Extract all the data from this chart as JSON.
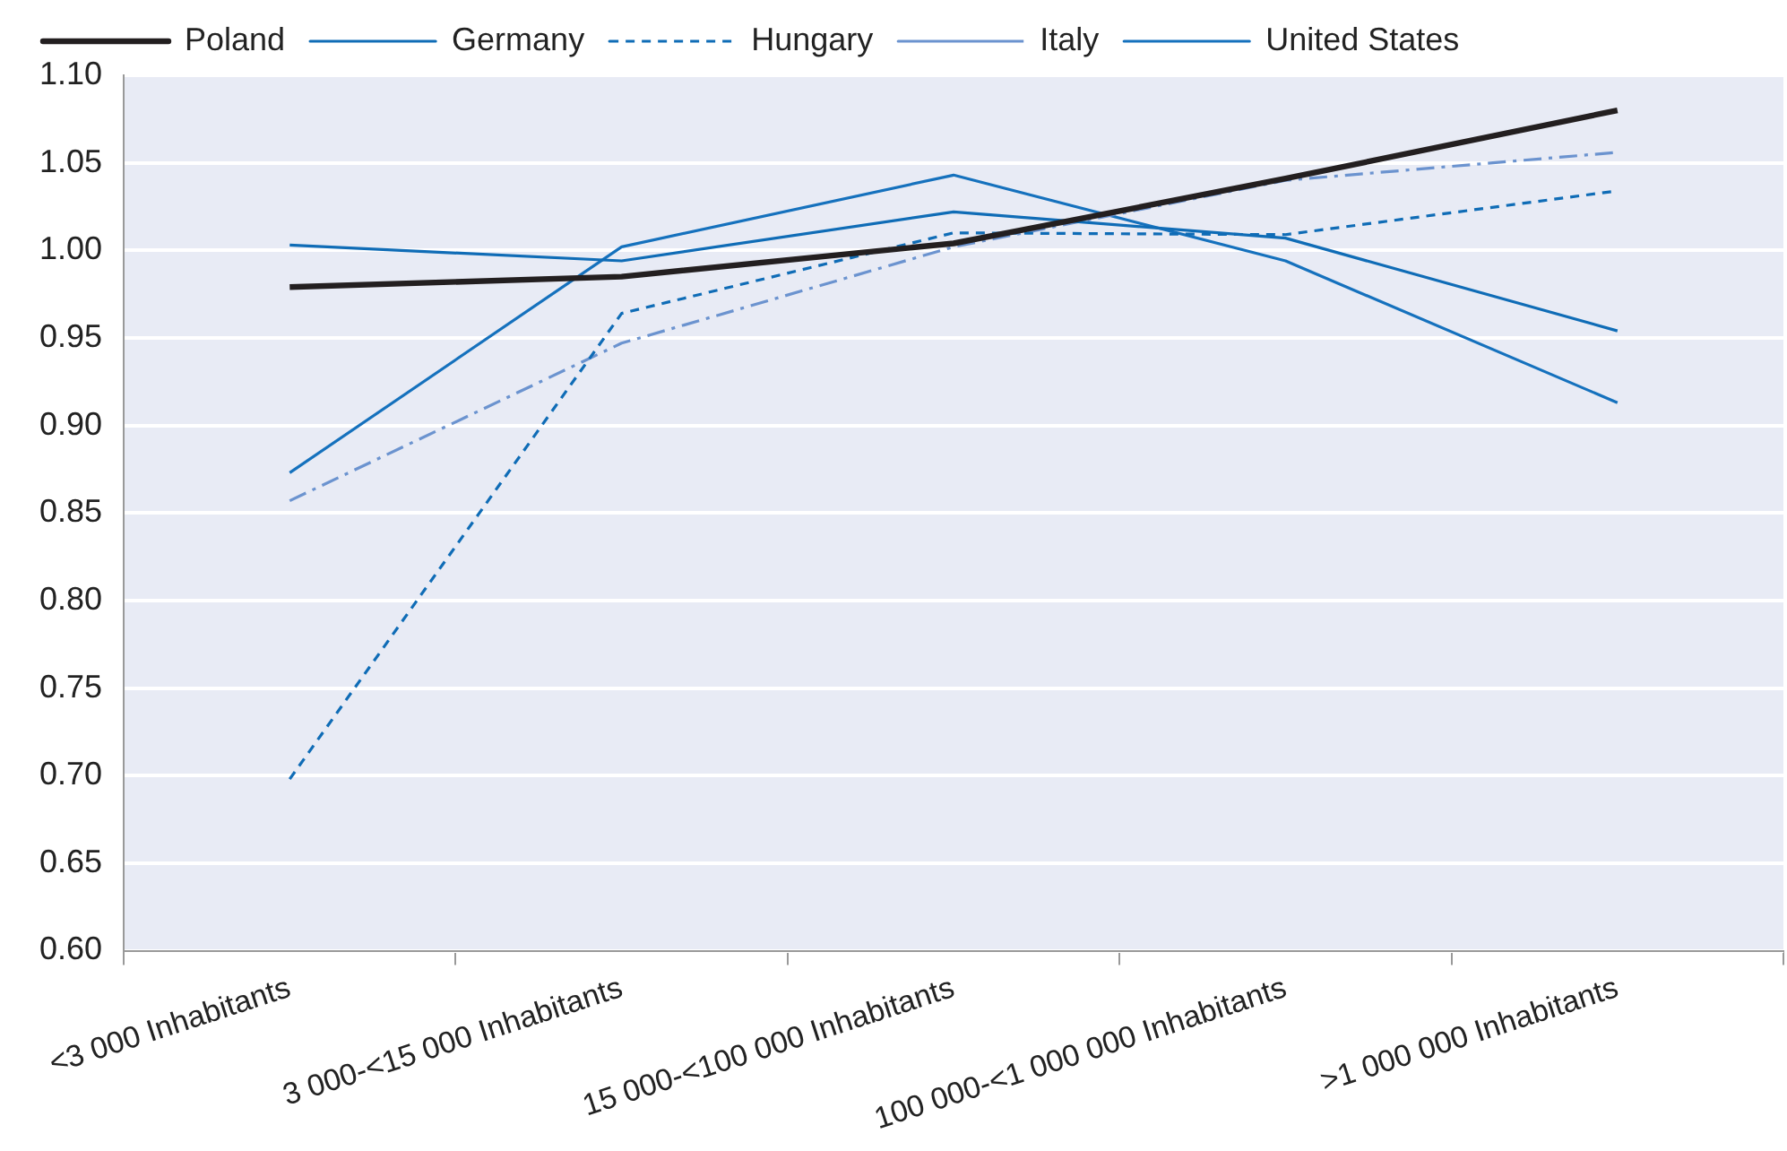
{
  "chart_data": {
    "type": "line",
    "categories": [
      "<3 000 Inhabitants",
      "3 000-<15 000 Inhabitants",
      "15 000-<100 000 Inhabitants",
      "100 000-<1 000 000 Inhabitants",
      ">1 000 000 Inhabitants"
    ],
    "series": [
      {
        "name": "Poland",
        "color": "#231f20",
        "line_style": "solid",
        "values": [
          0.979,
          0.985,
          1.004,
          1.041,
          1.08
        ]
      },
      {
        "name": "Germany",
        "color": "#0f6cb6",
        "line_style": "solid",
        "values": [
          1.003,
          0.994,
          1.022,
          1.007,
          0.954
        ]
      },
      {
        "name": "Hungary",
        "color": "#0f6cb6",
        "line_style": "dashed",
        "values": [
          0.698,
          0.964,
          1.01,
          1.009,
          1.034
        ]
      },
      {
        "name": "Italy",
        "color": "#6b93cf",
        "line_style": "dashdot",
        "values": [
          0.857,
          0.947,
          1.002,
          1.04,
          1.056
        ]
      },
      {
        "name": "United States",
        "color": "#1571bd",
        "line_style": "solid",
        "values": [
          0.873,
          1.002,
          1.043,
          0.994,
          0.913
        ]
      }
    ],
    "ylim": [
      0.6,
      1.1
    ],
    "yticks": [
      {
        "value": 0.6,
        "label": "0.60"
      },
      {
        "value": 0.65,
        "label": "0.65"
      },
      {
        "value": 0.7,
        "label": "0.70"
      },
      {
        "value": 0.75,
        "label": "0.75"
      },
      {
        "value": 0.8,
        "label": "0.80"
      },
      {
        "value": 0.85,
        "label": "0.85"
      },
      {
        "value": 0.9,
        "label": "0.90"
      },
      {
        "value": 0.95,
        "label": "0.95"
      },
      {
        "value": 1.0,
        "label": "1.00"
      },
      {
        "value": 1.05,
        "label": "1.05"
      },
      {
        "value": 1.1,
        "label": "1.10"
      }
    ],
    "grid": "y",
    "legend": "top",
    "marker": "none"
  }
}
